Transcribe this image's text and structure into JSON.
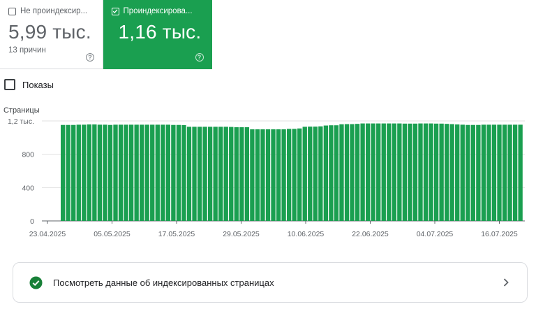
{
  "tiles": {
    "not_indexed": {
      "label": "Не проиндексир...",
      "value": "5,99 тыс.",
      "sub": "13 причин",
      "help": "?",
      "checked": false
    },
    "indexed": {
      "label": "Проиндексирова...",
      "value": "1,16 тыс.",
      "help": "?",
      "checked": true,
      "color": "#1a9f50"
    }
  },
  "impressions": {
    "label": "Показы",
    "checked": false
  },
  "card": {
    "label": "Посмотреть данные об индексированных страницах",
    "icon": "check-circle-icon",
    "chevron": "chevron-right-icon"
  },
  "chart_data": {
    "type": "bar",
    "ylabel": "Страницы",
    "ylim": [
      0,
      1200
    ],
    "y_ticks": [
      0,
      400,
      800,
      1200
    ],
    "y_tick_labels": [
      "0",
      "400",
      "800",
      "1,2 тыс."
    ],
    "x_tick_labels": [
      "23.04.2025",
      "05.05.2025",
      "17.05.2025",
      "29.05.2025",
      "10.06.2025",
      "22.06.2025",
      "04.07.2025",
      "16.07.2025"
    ],
    "x_start": "23.04.2025",
    "x_end": "18.07.2025",
    "grid": true,
    "color": "#1a9f50",
    "values": [
      1152,
      1152,
      1152,
      1155,
      1155,
      1158,
      1158,
      1155,
      1155,
      1152,
      1155,
      1155,
      1155,
      1155,
      1155,
      1155,
      1155,
      1155,
      1155,
      1155,
      1155,
      1152,
      1152,
      1150,
      1130,
      1130,
      1130,
      1130,
      1130,
      1130,
      1130,
      1130,
      1128,
      1125,
      1125,
      1125,
      1100,
      1100,
      1100,
      1100,
      1100,
      1100,
      1100,
      1105,
      1105,
      1110,
      1130,
      1132,
      1132,
      1135,
      1145,
      1148,
      1148,
      1160,
      1162,
      1162,
      1165,
      1170,
      1170,
      1170,
      1170,
      1170,
      1170,
      1170,
      1170,
      1168,
      1168,
      1168,
      1170,
      1170,
      1170,
      1168,
      1168,
      1165,
      1162,
      1158,
      1155,
      1152,
      1152,
      1152,
      1155,
      1155,
      1155,
      1155,
      1155,
      1155,
      1155,
      1155
    ]
  }
}
